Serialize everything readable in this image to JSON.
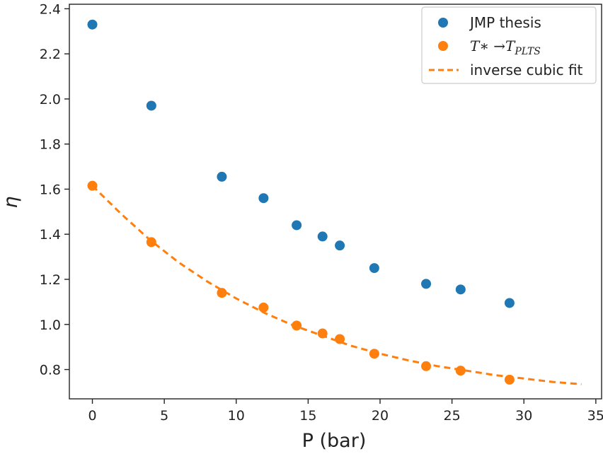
{
  "chart_data": {
    "type": "scatter",
    "title": "",
    "xlabel": "P (bar)",
    "ylabel": "η",
    "xlim": [
      -1.6,
      35.4
    ],
    "ylim": [
      0.67,
      2.42
    ],
    "xticks": [
      "0",
      "5",
      "10",
      "15",
      "20",
      "25",
      "30",
      "35"
    ],
    "yticks": [
      "0.8",
      "1.0",
      "1.2",
      "1.4",
      "1.6",
      "1.8",
      "2.0",
      "2.2",
      "2.4"
    ],
    "grid": false,
    "legend_position": "top-right",
    "series": [
      {
        "name": "JMP thesis",
        "kind": "scatter",
        "color": "#1f77b4",
        "x": [
          0,
          4.1,
          9.0,
          11.9,
          14.2,
          16.0,
          17.2,
          19.6,
          23.2,
          25.6,
          29.0
        ],
        "y": [
          2.33,
          1.97,
          1.655,
          1.56,
          1.44,
          1.39,
          1.35,
          1.25,
          1.18,
          1.155,
          1.095
        ]
      },
      {
        "name": "T∗ → T_PLTS",
        "legend_main": "T∗ →T",
        "legend_sub": "PLTS",
        "kind": "scatter",
        "color": "#ff7f0e",
        "x": [
          0,
          4.1,
          9.0,
          11.9,
          14.2,
          16.0,
          17.2,
          19.6,
          23.2,
          25.6,
          29.0
        ],
        "y": [
          1.615,
          1.365,
          1.14,
          1.075,
          0.995,
          0.96,
          0.935,
          0.87,
          0.815,
          0.795,
          0.755
        ]
      },
      {
        "name": "inverse cubic fit",
        "kind": "dashed-line",
        "color": "#ff7f0e",
        "x": [
          0,
          2,
          4,
          6,
          8,
          10,
          12,
          14,
          16,
          18,
          20,
          22,
          24,
          26,
          28,
          30,
          32,
          34
        ],
        "y": [
          1.615,
          1.49,
          1.375,
          1.275,
          1.19,
          1.115,
          1.05,
          0.995,
          0.95,
          0.905,
          0.87,
          0.84,
          0.815,
          0.795,
          0.775,
          0.76,
          0.745,
          0.735
        ]
      }
    ]
  }
}
